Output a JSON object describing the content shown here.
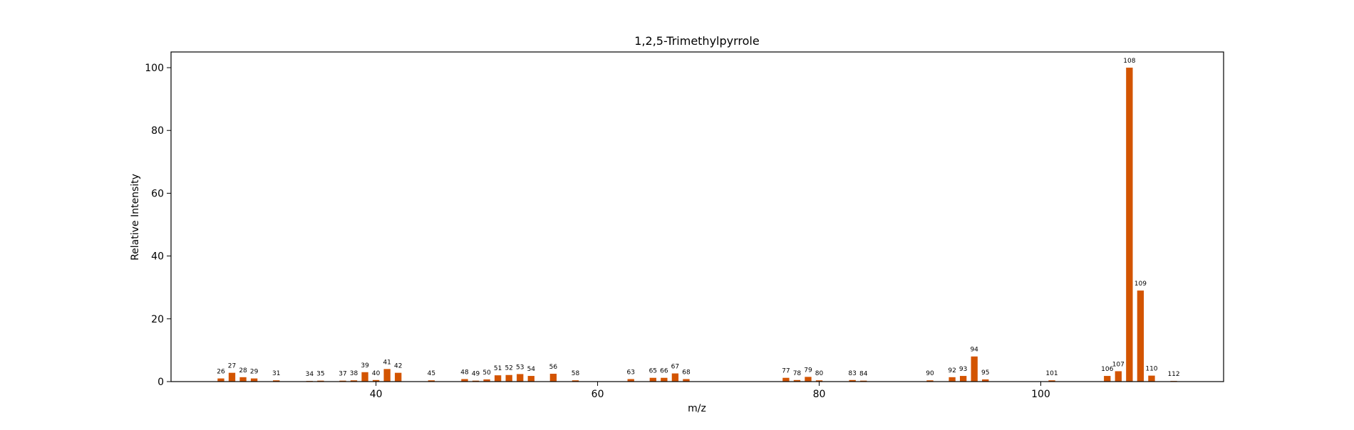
{
  "chart_data": {
    "type": "bar",
    "title": "1,2,5-Trimethylpyrrole",
    "xlabel": "m/z",
    "ylabel": "Relative Intensity",
    "xlim": [
      21.5,
      116.5
    ],
    "ylim": [
      0,
      105
    ],
    "xticks": [
      40,
      60,
      80,
      100
    ],
    "yticks": [
      0,
      20,
      40,
      60,
      80,
      100
    ],
    "grid": false,
    "bar_color": "#d35400",
    "x": [
      26,
      27,
      28,
      29,
      31,
      34,
      35,
      37,
      38,
      39,
      40,
      41,
      42,
      45,
      48,
      49,
      50,
      51,
      52,
      53,
      54,
      56,
      58,
      63,
      65,
      66,
      67,
      68,
      77,
      78,
      79,
      80,
      83,
      84,
      90,
      92,
      93,
      94,
      95,
      101,
      106,
      107,
      108,
      109,
      110,
      112
    ],
    "values": [
      1.0,
      2.8,
      1.4,
      1.0,
      0.4,
      0.2,
      0.3,
      0.3,
      0.4,
      3.0,
      0.5,
      4.0,
      2.8,
      0.4,
      0.8,
      0.3,
      0.7,
      2.0,
      2.1,
      2.4,
      1.8,
      2.5,
      0.4,
      0.8,
      1.2,
      1.2,
      2.6,
      0.8,
      1.2,
      0.5,
      1.5,
      0.4,
      0.5,
      0.3,
      0.4,
      1.4,
      1.8,
      8.0,
      0.7,
      0.4,
      1.8,
      3.3,
      100.0,
      29.0,
      1.9,
      0.2
    ]
  }
}
